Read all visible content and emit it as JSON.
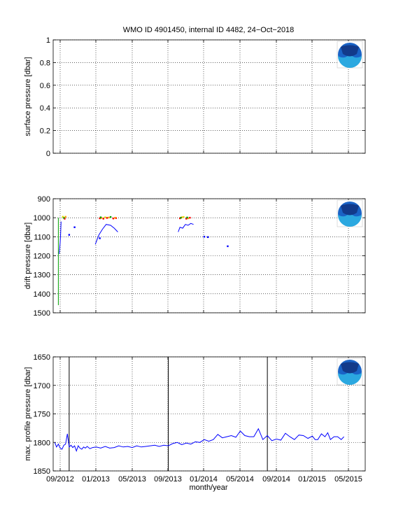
{
  "title": "WMO ID 4901450, internal ID 4482, 24−Oct−2018",
  "xlabel": "month/year",
  "x_ticks": [
    "09/2012",
    "01/2013",
    "05/2013",
    "09/2013",
    "01/2014",
    "05/2014",
    "09/2014",
    "01/2015",
    "05/2015"
  ],
  "chart_data": [
    {
      "type": "line",
      "ylabel": "surface pressure [dbar]",
      "ylim": [
        0,
        1
      ],
      "yticks": [
        "0",
        "0.2",
        "0.4",
        "0.6",
        "0.8",
        "1"
      ],
      "grid": true,
      "logo": "noaa-logo",
      "series": []
    },
    {
      "type": "scatter",
      "ylabel": "drift pressure [dbar]",
      "ylim": [
        900,
        1500
      ],
      "y_reversed": true,
      "yticks": [
        "900",
        "1000",
        "1100",
        "1200",
        "1300",
        "1400",
        "1500"
      ],
      "grid": true,
      "logo": "noaa-logo",
      "colors": {
        "line": "#0000ff",
        "green": "#00a000",
        "red": "#ff0000",
        "orange": "#ffa500",
        "yellow": "#dddd00"
      },
      "series_x_units": "months since 09/2012",
      "segments": [
        {
          "color": "green",
          "points": [
            [
              -0.2,
              1000
            ],
            [
              -0.2,
              1460
            ]
          ]
        },
        {
          "color": "line",
          "points": [
            [
              -0.1,
              1190
            ],
            [
              0.0,
              1130
            ],
            [
              0.05,
              1090
            ],
            [
              0.1,
              1020
            ]
          ]
        },
        {
          "color": "line",
          "points": [
            [
              3.9,
              1140
            ],
            [
              4.3,
              1090
            ],
            [
              4.7,
              1060
            ],
            [
              5.1,
              1035
            ],
            [
              5.6,
              1040
            ],
            [
              6.0,
              1055
            ],
            [
              6.4,
              1075
            ]
          ]
        },
        {
          "color": "line",
          "points": [
            [
              13.1,
              1075
            ],
            [
              13.3,
              1050
            ],
            [
              13.6,
              1055
            ],
            [
              13.9,
              1035
            ],
            [
              14.2,
              1040
            ],
            [
              14.5,
              1030
            ],
            [
              14.8,
              1035
            ]
          ]
        }
      ],
      "markers": [
        {
          "color": "line",
          "points": [
            [
              1.0,
              1090
            ],
            [
              1.6,
              1050
            ],
            [
              4.4,
              1108
            ],
            [
              16.0,
              1100
            ],
            [
              16.4,
              1102
            ],
            [
              18.6,
              1150
            ]
          ]
        },
        {
          "color": "red",
          "points": [
            [
              0.5,
              1005
            ],
            [
              4.4,
              1003
            ],
            [
              4.8,
              1005
            ],
            [
              5.2,
              1001
            ],
            [
              5.9,
              1004
            ],
            [
              6.2,
              1002
            ],
            [
              13.3,
              1003
            ],
            [
              14.0,
              1005
            ],
            [
              14.4,
              1000
            ]
          ]
        },
        {
          "color": "orange",
          "points": [
            [
              0.6,
              995
            ],
            [
              4.6,
              1001
            ],
            [
              5.4,
              999
            ],
            [
              6.1,
              1000
            ],
            [
              13.5,
              998
            ],
            [
              14.2,
              1003
            ]
          ]
        },
        {
          "color": "green",
          "points": [
            [
              0.4,
              1000
            ],
            [
              4.5,
              998
            ],
            [
              5.6,
              996
            ],
            [
              13.4,
              1000
            ],
            [
              14.1,
              999
            ]
          ]
        },
        {
          "color": "yellow",
          "points": [
            [
              0.3,
              995
            ],
            [
              5.0,
              998
            ],
            [
              13.7,
              996
            ]
          ]
        }
      ]
    },
    {
      "type": "line",
      "ylabel": "max. profile pressure [dbar]",
      "ylim": [
        1650,
        1850
      ],
      "y_reversed": true,
      "yticks": [
        "1650",
        "1700",
        "1750",
        "1800",
        "1850"
      ],
      "grid": true,
      "logo": "noaa-logo",
      "line_color": "#0000ff",
      "vlines_x": [
        1.0,
        12.0,
        23.0
      ],
      "series_x_units": "months since 09/2012",
      "x": [
        -0.6,
        -0.4,
        -0.2,
        0.0,
        0.2,
        0.4,
        0.6,
        0.8,
        1.0,
        1.2,
        1.4,
        1.6,
        1.8,
        2.0,
        2.2,
        2.4,
        2.6,
        2.8,
        3.0,
        3.3,
        3.6,
        4.0,
        4.5,
        5.0,
        5.5,
        6.0,
        6.5,
        7.0,
        7.5,
        8.0,
        8.5,
        9.0,
        9.5,
        10.0,
        10.5,
        11.0,
        11.5,
        12.0,
        12.5,
        13.0,
        13.5,
        14.0,
        14.5,
        15.0,
        15.5,
        16.0,
        16.5,
        17.0,
        17.5,
        18.0,
        18.5,
        19.0,
        19.5,
        20.0,
        20.5,
        21.0,
        21.5,
        22.0,
        22.5,
        23.0,
        23.5,
        24.0,
        24.5,
        25.0,
        25.5,
        26.0,
        26.5,
        27.0,
        27.5,
        28.0,
        28.3,
        28.6,
        29.0,
        29.4,
        29.7,
        30.0,
        30.4,
        30.8,
        31.2,
        31.5
      ],
      "y": [
        1800,
        1808,
        1803,
        1810,
        1812,
        1805,
        1803,
        1785,
        1808,
        1805,
        1809,
        1806,
        1815,
        1806,
        1810,
        1812,
        1808,
        1810,
        1807,
        1811,
        1809,
        1808,
        1810,
        1807,
        1810,
        1809,
        1806,
        1808,
        1807,
        1809,
        1806,
        1808,
        1807,
        1806,
        1805,
        1807,
        1805,
        1806,
        1802,
        1800,
        1804,
        1801,
        1803,
        1799,
        1800,
        1795,
        1798,
        1795,
        1786,
        1792,
        1790,
        1788,
        1791,
        1780,
        1788,
        1790,
        1790,
        1776,
        1795,
        1788,
        1797,
        1794,
        1796,
        1784,
        1790,
        1795,
        1787,
        1788,
        1793,
        1789,
        1795,
        1795,
        1785,
        1790,
        1783,
        1795,
        1790,
        1790,
        1795,
        1790
      ]
    }
  ]
}
